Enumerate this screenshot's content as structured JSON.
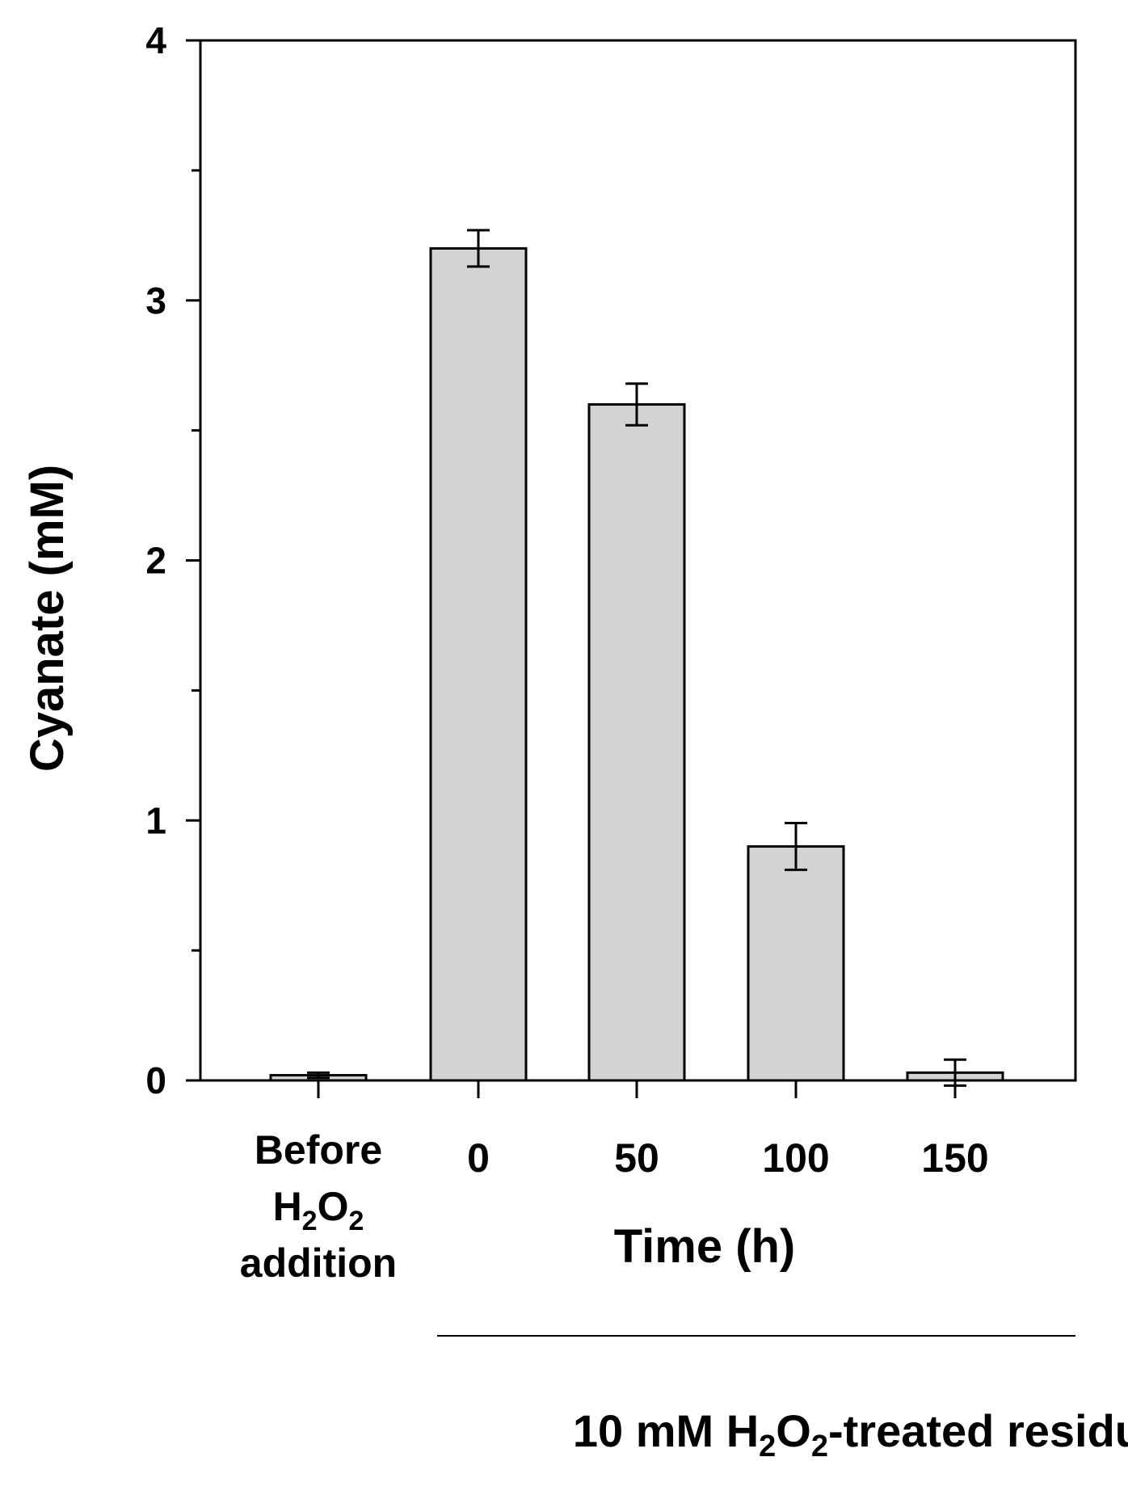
{
  "chart_data": {
    "type": "bar",
    "ylabel": "Cyanate (mM)",
    "ylim": [
      0,
      4
    ],
    "yticks_major": [
      "0",
      "1",
      "2",
      "3",
      "4"
    ],
    "yticks_minor": [
      0.5,
      1.5,
      2.5,
      3.5
    ],
    "categories": [
      {
        "lines": [
          "Before",
          "H",
          "addition"
        ],
        "sub": "2"
      },
      {
        "lines": [
          "0"
        ]
      },
      {
        "lines": [
          "50"
        ]
      },
      {
        "lines": [
          "100"
        ]
      },
      {
        "lines": [
          "150"
        ]
      }
    ],
    "values": [
      0.02,
      3.2,
      2.6,
      0.9,
      0.03
    ],
    "errors": [
      0.01,
      0.07,
      0.08,
      0.09,
      0.05
    ],
    "xlabel": "Time (h)",
    "group_label": {
      "prefix": "10 mM H",
      "sub1": "2",
      "mid": "O",
      "sub2": "2",
      "suffix": "-treated residue"
    },
    "h2o2": {
      "h": "H",
      "sub1": "2",
      "o": "O",
      "sub2": "2"
    },
    "bar_color": "#d3d3d3",
    "line_color": "#000000"
  }
}
